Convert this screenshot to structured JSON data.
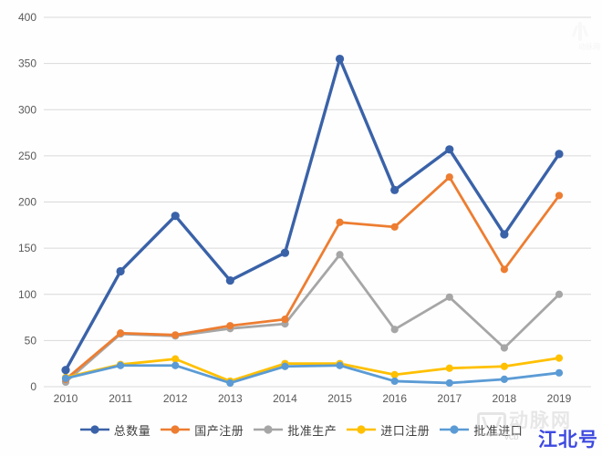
{
  "chart_data": {
    "type": "line",
    "title": "",
    "xlabel": "",
    "ylabel": "",
    "categories": [
      "2010",
      "2011",
      "2012",
      "2013",
      "2014",
      "2015",
      "2016",
      "2017",
      "2018",
      "2019"
    ],
    "series": [
      {
        "name": "总数量",
        "color": "#3a62a8",
        "values": [
          18,
          125,
          185,
          115,
          145,
          355,
          213,
          257,
          165,
          252
        ]
      },
      {
        "name": "国产注册",
        "color": "#ed7d31",
        "values": [
          8,
          58,
          56,
          66,
          73,
          178,
          173,
          227,
          127,
          207
        ]
      },
      {
        "name": "批准生产",
        "color": "#a6a6a6",
        "values": [
          5,
          57,
          55,
          63,
          68,
          143,
          62,
          97,
          42,
          100
        ]
      },
      {
        "name": "进口注册",
        "color": "#ffc000",
        "values": [
          10,
          24,
          30,
          6,
          25,
          25,
          13,
          20,
          22,
          31
        ]
      },
      {
        "name": "批准进口",
        "color": "#5b9bd5",
        "values": [
          9,
          23,
          23,
          4,
          22,
          23,
          6,
          4,
          8,
          15
        ]
      }
    ],
    "ylim": [
      0,
      400
    ],
    "ytick_step": 50,
    "grid": true,
    "gridline_color": "#d9d9d9",
    "legend_position": "bottom"
  },
  "watermarks": {
    "bottom_logo": "vcbeat-logo",
    "bottom_text": "动脉网",
    "bottom_sub": "vcb",
    "badge_text": "江北号",
    "badge_color": "#3d49e0",
    "top_text": "动脉网"
  }
}
